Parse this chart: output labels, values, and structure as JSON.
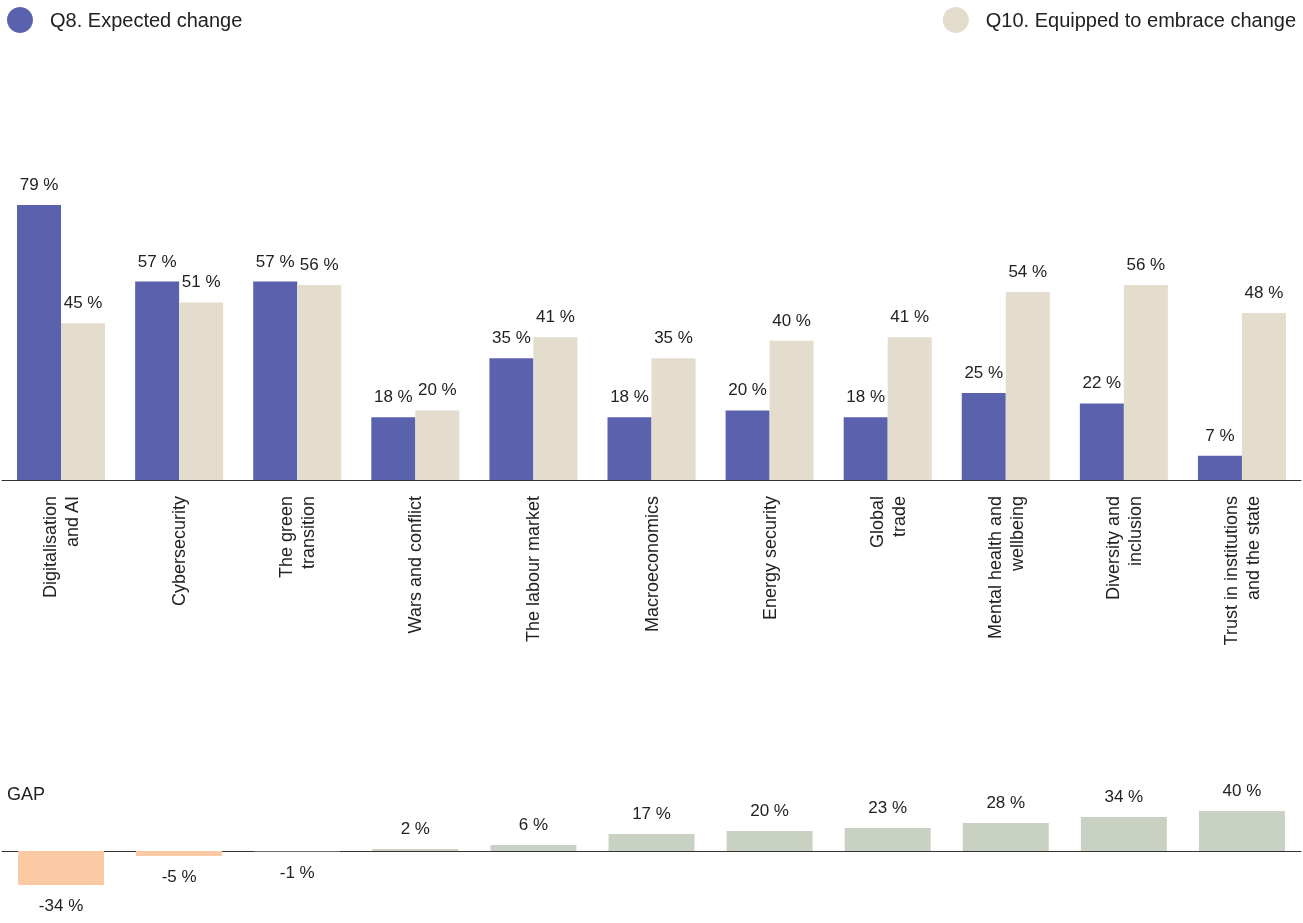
{
  "chart_data": [
    {
      "type": "bar",
      "categories": [
        "Digitalisation\nand AI",
        "Cybersecurity",
        "The green\ntransition",
        "Wars and conflict",
        "The labour market",
        "Macroeconomics",
        "Energy security",
        "Global\ntrade",
        "Mental health and\nwellbeing",
        "Diversity and\ninclusion",
        "Trust in institutions\nand the state"
      ],
      "series": [
        {
          "name": "Q8. Expected change",
          "color": "#5b62ad",
          "values": [
            79,
            57,
            57,
            18,
            35,
            18,
            20,
            18,
            25,
            22,
            7
          ],
          "value_labels": [
            "79 %",
            "57 %",
            "57 %",
            "18 %",
            "35 %",
            "18 %",
            "20 %",
            "18 %",
            "25 %",
            "22 %",
            "7 %"
          ]
        },
        {
          "name": "Q10. Equipped to embrace change",
          "color": "#e4dccd",
          "values": [
            45,
            51,
            56,
            20,
            41,
            35,
            40,
            41,
            54,
            56,
            48
          ],
          "value_labels": [
            "45 %",
            "51 %",
            "56 %",
            "20 %",
            "41 %",
            "35 %",
            "40 %",
            "41 %",
            "54 %",
            "56 %",
            "48 %"
          ]
        }
      ],
      "legend": "top"
    },
    {
      "type": "bar",
      "title": "GAP",
      "categories": [
        null,
        null,
        null,
        null,
        null,
        null,
        null,
        null,
        null,
        null,
        null
      ],
      "values": [
        -34,
        -5,
        -1,
        2,
        6,
        17,
        20,
        23,
        28,
        34,
        40
      ],
      "colors": [
        "#fcc9a5",
        "#fcc9a5",
        "#6e6e6e",
        "#c9d1c3",
        "#c9d1c3",
        "#c9d1c3",
        "#c9d1c3",
        "#c9d1c3",
        "#c9d1c3",
        "#c9d1c3",
        "#c9d1c3"
      ],
      "value_labels": [
        "-34 %",
        "-5 %",
        "-1 %",
        "2 %",
        "6 %",
        "17 %",
        "20 %",
        "23 %",
        "28 %",
        "34 %",
        "40 %"
      ],
      "legend": false
    }
  ]
}
